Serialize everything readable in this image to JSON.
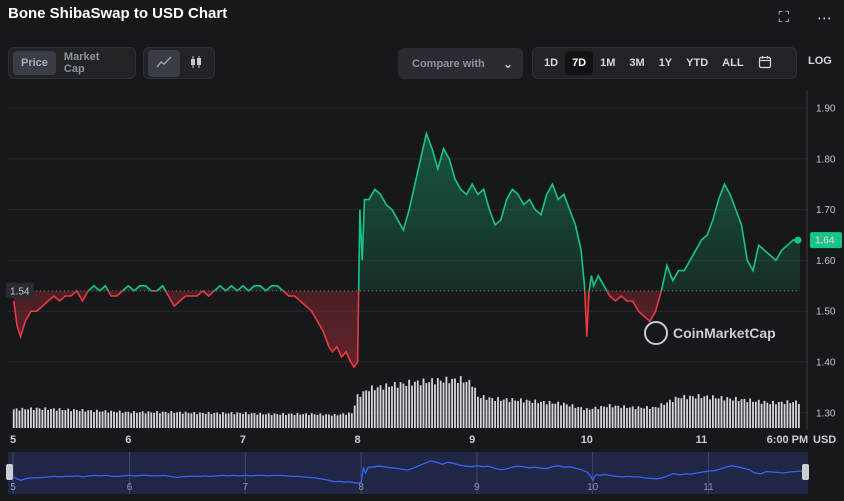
{
  "header": {
    "title": "Bone ShibaSwap to USD Chart",
    "fullscreen_icon": "expand-icon",
    "more_icon": "more-dots-icon"
  },
  "toolbar": {
    "metric_tabs": [
      {
        "label": "Price",
        "active": true
      },
      {
        "label": "Market Cap",
        "active": false
      }
    ],
    "chart_type_icons": [
      "line-chart-icon",
      "candlestick-icon"
    ],
    "compare_label": "Compare with",
    "ranges": [
      {
        "label": "1D",
        "active": false
      },
      {
        "label": "7D",
        "active": true
      },
      {
        "label": "1M",
        "active": false
      },
      {
        "label": "3M",
        "active": false
      },
      {
        "label": "1Y",
        "active": false
      },
      {
        "label": "YTD",
        "active": false
      },
      {
        "label": "ALL",
        "active": false
      }
    ],
    "calendar_icon": "calendar-icon",
    "log_label": "LOG"
  },
  "colors": {
    "up": "#16c784",
    "down": "#ea3943",
    "background": "#17181b",
    "navigator_fill": "#1f2744",
    "navigator_line": "#3861fb",
    "volume": "#d4d7dc"
  },
  "watermark": "CoinMarketCap",
  "chart_data": {
    "type": "line",
    "xlabel": "",
    "ylabel": "USD",
    "ylim": [
      1.27,
      1.91
    ],
    "y_ticks": [
      "1.90",
      "1.80",
      "1.70",
      "1.60",
      "1.50",
      "1.40",
      "1.30"
    ],
    "x_ticks": [
      {
        "label": "5",
        "t": 0
      },
      {
        "label": "6",
        "t": 1
      },
      {
        "label": "7",
        "t": 2
      },
      {
        "label": "8",
        "t": 3
      },
      {
        "label": "9",
        "t": 4
      },
      {
        "label": "10",
        "t": 5
      },
      {
        "label": "11",
        "t": 6
      },
      {
        "label": "6:00 PM",
        "t": 6.75
      }
    ],
    "reference_price": 1.54,
    "reference_label": "1.54",
    "current_price": 1.64,
    "current_label": "1.64",
    "price_series": {
      "t": [
        0,
        0.03,
        0.06,
        0.1,
        0.15,
        0.2,
        0.25,
        0.3,
        0.35,
        0.4,
        0.45,
        0.5,
        0.55,
        0.6,
        0.65,
        0.7,
        0.75,
        0.8,
        0.85,
        0.9,
        0.95,
        1.0,
        1.05,
        1.1,
        1.15,
        1.2,
        1.25,
        1.3,
        1.35,
        1.4,
        1.45,
        1.5,
        1.55,
        1.6,
        1.65,
        1.7,
        1.75,
        1.8,
        1.85,
        1.9,
        1.95,
        2.0,
        2.05,
        2.1,
        2.15,
        2.2,
        2.25,
        2.3,
        2.35,
        2.4,
        2.45,
        2.5,
        2.55,
        2.6,
        2.65,
        2.7,
        2.75,
        2.78,
        2.82,
        2.86,
        2.9,
        2.94,
        2.97,
        3.0,
        3.02,
        3.04,
        3.06,
        3.1,
        3.15,
        3.2,
        3.25,
        3.3,
        3.35,
        3.4,
        3.45,
        3.5,
        3.55,
        3.6,
        3.65,
        3.7,
        3.75,
        3.8,
        3.85,
        3.9,
        3.95,
        4.0,
        4.05,
        4.1,
        4.15,
        4.2,
        4.25,
        4.3,
        4.35,
        4.4,
        4.45,
        4.5,
        4.55,
        4.6,
        4.65,
        4.7,
        4.75,
        4.8,
        4.85,
        4.9,
        4.95,
        4.98,
        5.0,
        5.02,
        5.04,
        5.06,
        5.1,
        5.15,
        5.2,
        5.25,
        5.3,
        5.35,
        5.4,
        5.45,
        5.5,
        5.55,
        5.6,
        5.65,
        5.7,
        5.75,
        5.8,
        5.85,
        5.9,
        5.95,
        6.0,
        6.05,
        6.1,
        6.15,
        6.2,
        6.25,
        6.3,
        6.35,
        6.4,
        6.45,
        6.5,
        6.55,
        6.6,
        6.65,
        6.7,
        6.75,
        6.8,
        6.86
      ],
      "values": [
        1.52,
        1.47,
        1.45,
        1.48,
        1.5,
        1.5,
        1.51,
        1.52,
        1.53,
        1.52,
        1.53,
        1.53,
        1.54,
        1.52,
        1.54,
        1.55,
        1.54,
        1.55,
        1.53,
        1.53,
        1.54,
        1.55,
        1.54,
        1.55,
        1.55,
        1.54,
        1.54,
        1.55,
        1.53,
        1.51,
        1.52,
        1.53,
        1.53,
        1.53,
        1.54,
        1.53,
        1.54,
        1.55,
        1.54,
        1.55,
        1.54,
        1.55,
        1.54,
        1.55,
        1.55,
        1.54,
        1.55,
        1.55,
        1.54,
        1.53,
        1.53,
        1.52,
        1.51,
        1.5,
        1.48,
        1.46,
        1.43,
        1.42,
        1.43,
        1.41,
        1.42,
        1.4,
        1.39,
        1.4,
        1.7,
        1.6,
        1.72,
        1.72,
        1.74,
        1.73,
        1.71,
        1.7,
        1.68,
        1.66,
        1.7,
        1.75,
        1.8,
        1.85,
        1.82,
        1.78,
        1.82,
        1.8,
        1.76,
        1.74,
        1.73,
        1.75,
        1.73,
        1.74,
        1.7,
        1.67,
        1.68,
        1.72,
        1.74,
        1.73,
        1.71,
        1.72,
        1.7,
        1.69,
        1.73,
        1.75,
        1.72,
        1.73,
        1.7,
        1.67,
        1.62,
        1.55,
        1.45,
        1.54,
        1.57,
        1.55,
        1.57,
        1.55,
        1.53,
        1.52,
        1.53,
        1.52,
        1.52,
        1.5,
        1.49,
        1.48,
        1.5,
        1.54,
        1.59,
        1.56,
        1.58,
        1.58,
        1.6,
        1.62,
        1.64,
        1.65,
        1.68,
        1.72,
        1.75,
        1.73,
        1.7,
        1.67,
        1.6,
        1.58,
        1.63,
        1.62,
        1.61,
        1.6,
        1.62,
        1.63,
        1.64,
        1.64
      ],
      "note_color_rule": "green above reference, red below"
    },
    "volume_series": {
      "t": [
        0,
        0.2,
        0.4,
        0.6,
        0.8,
        1.0,
        1.2,
        1.4,
        1.6,
        1.8,
        2.0,
        2.2,
        2.4,
        2.6,
        2.8,
        2.95,
        3.0,
        3.1,
        3.3,
        3.5,
        3.7,
        3.9,
        4.0,
        4.05,
        4.2,
        4.4,
        4.6,
        4.8,
        5.0,
        5.2,
        5.4,
        5.6,
        5.8,
        6.0,
        6.2,
        6.4,
        6.6,
        6.8
      ],
      "values": [
        20,
        21,
        20,
        19,
        18,
        17,
        17,
        17,
        16,
        16,
        16,
        15,
        15,
        15,
        14,
        16,
        34,
        42,
        46,
        49,
        51,
        52,
        48,
        34,
        31,
        30,
        28,
        26,
        20,
        24,
        22,
        22,
        33,
        34,
        32,
        30,
        27,
        28
      ],
      "max_value": 60
    }
  }
}
